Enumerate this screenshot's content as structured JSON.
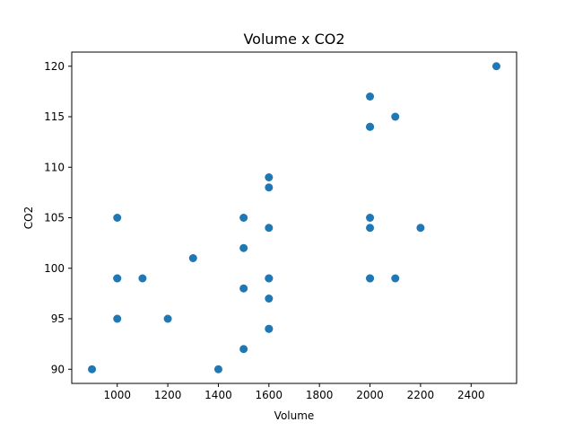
{
  "chart_data": {
    "type": "scatter",
    "title": "Volume x CO2",
    "xlabel": "Volume",
    "ylabel": "CO2",
    "xlim": [
      820,
      2580
    ],
    "ylim": [
      88.6,
      121.4
    ],
    "xticks": [
      1000,
      1200,
      1400,
      1600,
      1800,
      2000,
      2200,
      2400
    ],
    "yticks": [
      90,
      95,
      100,
      105,
      110,
      115,
      120
    ],
    "grid": false,
    "marker_color": "#1f77b4",
    "series": [
      {
        "points": [
          [
            900,
            90
          ],
          [
            1000,
            105
          ],
          [
            1000,
            99
          ],
          [
            1000,
            99
          ],
          [
            1000,
            95
          ],
          [
            1100,
            99
          ],
          [
            1200,
            95
          ],
          [
            1300,
            101
          ],
          [
            1400,
            90
          ],
          [
            1500,
            105
          ],
          [
            1500,
            102
          ],
          [
            1500,
            98
          ],
          [
            1500,
            92
          ],
          [
            1600,
            109
          ],
          [
            1600,
            108
          ],
          [
            1600,
            104
          ],
          [
            1600,
            99
          ],
          [
            1600,
            99
          ],
          [
            1600,
            97
          ],
          [
            1600,
            94
          ],
          [
            1600,
            94
          ],
          [
            2000,
            117
          ],
          [
            2000,
            114
          ],
          [
            2000,
            114
          ],
          [
            2000,
            105
          ],
          [
            2000,
            104
          ],
          [
            2000,
            99
          ],
          [
            2000,
            99
          ],
          [
            2100,
            115
          ],
          [
            2100,
            99
          ],
          [
            2200,
            104
          ],
          [
            2500,
            120
          ]
        ]
      }
    ]
  }
}
